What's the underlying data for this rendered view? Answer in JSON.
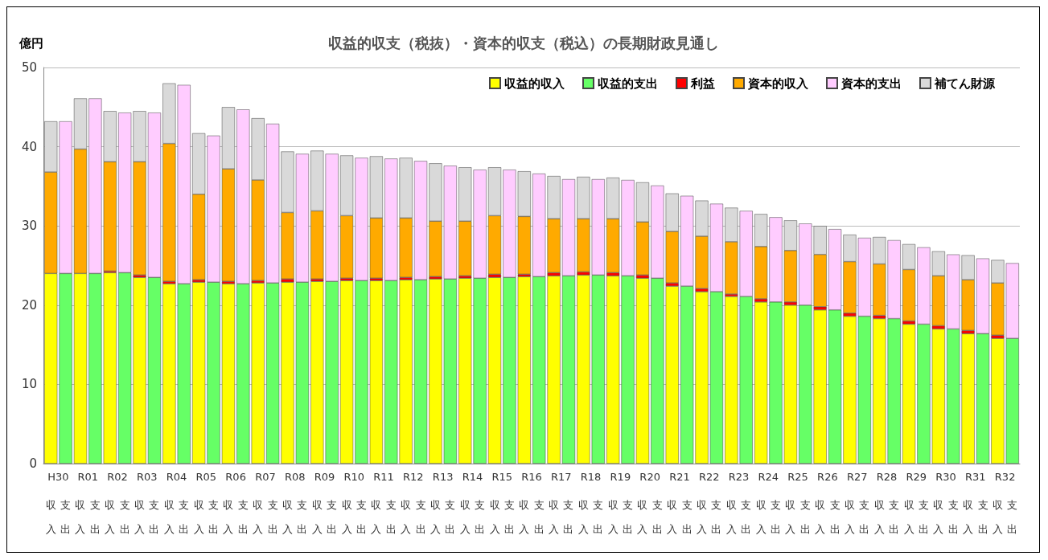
{
  "chart_data": {
    "type": "bar",
    "title": "収益的収支（税抜）・資本的収支（税込）の長期財政見通し",
    "ylabel": "億円",
    "stacked": true,
    "categories": [
      "収入",
      "支出",
      "収入",
      "支出",
      "収入",
      "支出",
      "収入",
      "支出",
      "収入",
      "支出",
      "収入",
      "支出",
      "収入",
      "支出",
      "収入",
      "支出",
      "収入",
      "支出",
      "収入",
      "支出",
      "収入",
      "支出",
      "収入",
      "支出",
      "収入",
      "支出",
      "収入",
      "支出",
      "収入",
      "支出",
      "収入",
      "支出",
      "収入",
      "支出",
      "収入",
      "支出",
      "収入",
      "支出",
      "収入",
      "支出",
      "収入",
      "支出",
      "収入",
      "支出",
      "収入",
      "支出",
      "収入",
      "支出",
      "収入",
      "支出",
      "収入",
      "支出",
      "収入",
      "支出",
      "収入",
      "支出",
      "収入",
      "支出",
      "収入",
      "支出",
      "収入",
      "支出",
      "収入",
      "支出",
      "収入",
      "支出"
    ],
    "annotations": [
      "H30",
      "R01",
      "R02",
      "R03",
      "R04",
      "R05",
      "R06",
      "R07",
      "R08",
      "R09",
      "R10",
      "R11",
      "R12",
      "R13",
      "R14",
      "R15",
      "R16",
      "R17",
      "R18",
      "R19",
      "R20",
      "R21",
      "R22",
      "R23",
      "R24",
      "R25",
      "R26",
      "R27",
      "R28",
      "R29",
      "R30",
      "R31",
      "R32"
    ],
    "series": [
      {
        "name": "収益的収入",
        "color": "#ffff00",
        "values": [
          24.0,
          null,
          24.0,
          null,
          24.1,
          null,
          23.5,
          null,
          22.7,
          null,
          22.9,
          null,
          22.7,
          null,
          22.8,
          null,
          22.9,
          null,
          23.0,
          null,
          23.1,
          null,
          23.1,
          null,
          23.2,
          null,
          23.3,
          null,
          23.4,
          null,
          23.5,
          null,
          23.6,
          null,
          23.7,
          null,
          23.8,
          null,
          23.7,
          null,
          23.4,
          null,
          22.4,
          null,
          21.7,
          null,
          21.1,
          null,
          20.4,
          null,
          20.0,
          null,
          19.4,
          null,
          18.6,
          null,
          18.3,
          null,
          17.6,
          null,
          17.0,
          null,
          16.4,
          null,
          15.8,
          null
        ]
      },
      {
        "name": "収益的支出",
        "color": "#66ff66",
        "values": [
          null,
          24.0,
          null,
          24.0,
          null,
          24.1,
          null,
          23.5,
          null,
          22.7,
          null,
          22.9,
          null,
          22.7,
          null,
          22.8,
          null,
          22.9,
          null,
          23.0,
          null,
          23.1,
          null,
          23.1,
          null,
          23.2,
          null,
          23.3,
          null,
          23.4,
          null,
          23.5,
          null,
          23.6,
          null,
          23.7,
          null,
          23.8,
          null,
          23.7,
          null,
          23.4,
          null,
          22.4,
          null,
          21.7,
          null,
          21.1,
          null,
          20.4,
          null,
          20.0,
          null,
          19.4,
          null,
          18.6,
          null,
          18.3,
          null,
          17.6,
          null,
          17.0,
          null,
          16.4,
          null,
          15.8
        ]
      },
      {
        "name": "利益",
        "color": "#ff0000",
        "values": [
          null,
          null,
          null,
          null,
          0.2,
          null,
          0.3,
          null,
          0.3,
          null,
          0.3,
          null,
          0.3,
          null,
          0.3,
          null,
          0.4,
          null,
          0.3,
          null,
          0.3,
          null,
          0.3,
          null,
          0.3,
          null,
          0.3,
          null,
          0.3,
          null,
          0.4,
          null,
          0.3,
          null,
          0.4,
          null,
          0.4,
          null,
          0.4,
          null,
          0.4,
          null,
          0.4,
          null,
          0.4,
          null,
          0.3,
          null,
          0.4,
          null,
          0.4,
          null,
          0.4,
          null,
          0.4,
          null,
          0.4,
          null,
          0.4,
          null,
          0.4,
          null,
          0.4,
          null,
          0.4,
          null
        ]
      },
      {
        "name": "資本的収入",
        "color": "#ffaa00",
        "values": [
          12.8,
          null,
          15.7,
          null,
          13.8,
          null,
          14.3,
          null,
          17.4,
          null,
          10.8,
          null,
          14.2,
          null,
          12.7,
          null,
          8.4,
          null,
          8.6,
          null,
          7.9,
          null,
          7.6,
          null,
          7.5,
          null,
          7.0,
          null,
          6.9,
          null,
          7.4,
          null,
          7.3,
          null,
          6.8,
          null,
          6.7,
          null,
          6.8,
          null,
          6.7,
          null,
          6.5,
          null,
          6.6,
          null,
          6.6,
          null,
          6.6,
          null,
          6.5,
          null,
          6.6,
          null,
          6.5,
          null,
          6.5,
          null,
          6.5,
          null,
          6.3,
          null,
          6.4,
          null,
          6.6,
          null
        ]
      },
      {
        "name": "資本的支出",
        "color": "#ffccff",
        "values": [
          null,
          19.2,
          null,
          22.1,
          null,
          20.2,
          null,
          20.8,
          null,
          25.1,
          null,
          18.5,
          null,
          22.0,
          null,
          20.1,
          null,
          16.2,
          null,
          16.1,
          null,
          15.5,
          null,
          15.4,
          null,
          15.0,
          null,
          14.3,
          null,
          13.7,
          null,
          13.6,
          null,
          13.0,
          null,
          12.2,
          null,
          12.1,
          null,
          12.1,
          null,
          11.7,
          null,
          11.4,
          null,
          11.1,
          null,
          10.8,
          null,
          10.7,
          null,
          10.3,
          null,
          10.2,
          null,
          9.9,
          null,
          9.9,
          null,
          9.7,
          null,
          9.4,
          null,
          9.5,
          null,
          9.5
        ]
      },
      {
        "name": "補てん財源",
        "color": "#d9d9d9",
        "values": [
          6.4,
          null,
          6.4,
          null,
          6.4,
          null,
          6.4,
          null,
          7.6,
          null,
          7.7,
          null,
          7.8,
          null,
          7.8,
          null,
          7.7,
          null,
          7.6,
          null,
          7.6,
          null,
          7.8,
          null,
          7.6,
          null,
          7.3,
          null,
          6.8,
          null,
          6.1,
          null,
          5.7,
          null,
          5.4,
          null,
          5.3,
          null,
          5.2,
          null,
          5.0,
          null,
          4.8,
          null,
          4.5,
          null,
          4.3,
          null,
          4.1,
          null,
          3.8,
          null,
          3.6,
          null,
          3.4,
          null,
          3.4,
          null,
          3.2,
          null,
          3.1,
          null,
          3.1,
          null,
          2.9,
          null
        ]
      }
    ],
    "ylim": [
      0,
      50
    ],
    "yticks": [
      0,
      10,
      20,
      30,
      40,
      50
    ],
    "grid": "y",
    "legend": "top right"
  }
}
